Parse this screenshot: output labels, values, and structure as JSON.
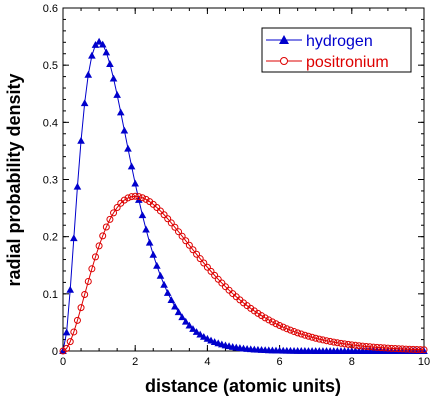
{
  "chart_data": {
    "type": "scatter",
    "title": "",
    "xlabel": "distance (atomic units)",
    "ylabel": "radial probability density",
    "xlim": [
      0,
      10
    ],
    "ylim": [
      0,
      0.6
    ],
    "xticks": [
      0,
      2,
      4,
      6,
      8,
      10
    ],
    "yticks": [
      0,
      0.1,
      0.2,
      0.3,
      0.4,
      0.5,
      0.6
    ],
    "grid": false,
    "legend_position": "top-right",
    "series": [
      {
        "name": "hydrogen",
        "color": "#0000cc",
        "marker": "triangle-filled",
        "connected": true,
        "formula": "4 r^2 exp(-2r)",
        "x_range": [
          0,
          10
        ],
        "x_step": 0.1
      },
      {
        "name": "positronium",
        "color": "#dd0000",
        "marker": "circle-open",
        "connected": true,
        "formula": "0.5 r^2 exp(-r)",
        "x_range": [
          0,
          10
        ],
        "x_step": 0.1
      }
    ]
  }
}
